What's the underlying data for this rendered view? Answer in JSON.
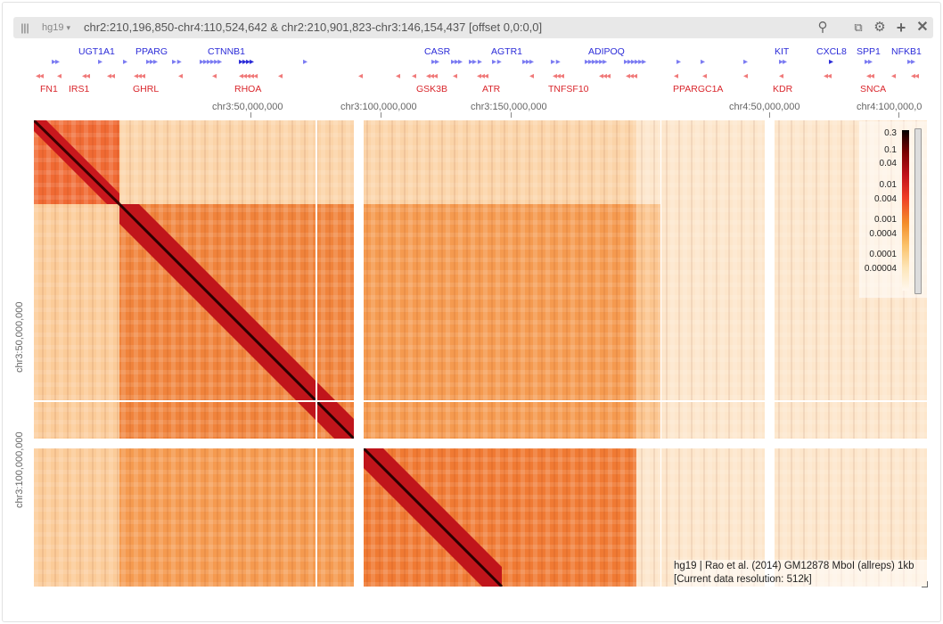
{
  "toolbar": {
    "assembly": "hg19",
    "location": "chr2:210,196,850-chr4:110,524,642 & chr2:210,901,823-chr3:146,154,437 [offset 0,0:0,0]",
    "icons": [
      "drag-handle-icon",
      "dropdown-caret-icon",
      "search-icon",
      "copy-icon",
      "gear-icon",
      "plus-icon",
      "close-icon"
    ]
  },
  "genes_plus": [
    "UGT1A1",
    "PPARG",
    "CTNNB1",
    "CASR",
    "AGTR1",
    "ADIPOQ",
    "KIT",
    "CXCL8",
    "SPP1",
    "NFKB1"
  ],
  "genes_minus": [
    "FN1",
    "IRS1",
    "GHRL",
    "RHOA",
    "GSK3B",
    "ATR",
    "TNFSF10",
    "PPARGC1A",
    "KDR",
    "SNCA"
  ],
  "ruler": {
    "ticks": [
      "chr3:50,000,000",
      "chr3:100,000,000",
      "chr3:150,000,000",
      "chr4:50,000,000",
      "chr4:100,000,0"
    ]
  },
  "vruler": {
    "ticks": [
      "chr3:50,000,000",
      "chr3:100,000,000"
    ]
  },
  "legend": {
    "labels": [
      "0.3",
      "0.1",
      "0.04",
      "0.01",
      "0.004",
      "0.001",
      "0.0004",
      "0.0001",
      "0.00004"
    ]
  },
  "info": {
    "line1": "hg19 | Rao et al. (2014) GM12878 MboI (allreps) 1kb",
    "line2": "[Current data resolution: 512k]"
  },
  "colors": {
    "gene_plus": "#2b2bd8",
    "gene_minus": "#d9262c",
    "heat_low": "#fdebd2",
    "heat_mid": "#f07a2e",
    "heat_high": "#1a0000"
  }
}
